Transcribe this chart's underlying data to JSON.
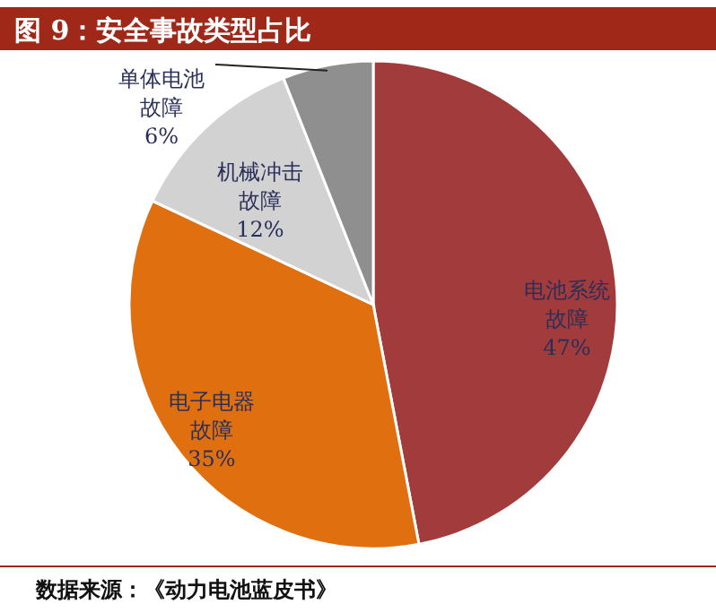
{
  "chart_data": {
    "type": "pie",
    "title": "图 9：安全事故类型占比",
    "categories": [
      "电池系统故障",
      "电子电器故障",
      "机械冲击故障",
      "单体电池故障"
    ],
    "values": [
      47,
      35,
      12,
      6
    ],
    "value_labels": [
      "47%",
      "35%",
      "12%",
      "6%"
    ],
    "colors": [
      "#a23b3b",
      "#e0700f",
      "#d2d2d2",
      "#8f8f8f"
    ],
    "annotations": [
      "数据来源：《动力电池蓝皮书》"
    ]
  }
}
